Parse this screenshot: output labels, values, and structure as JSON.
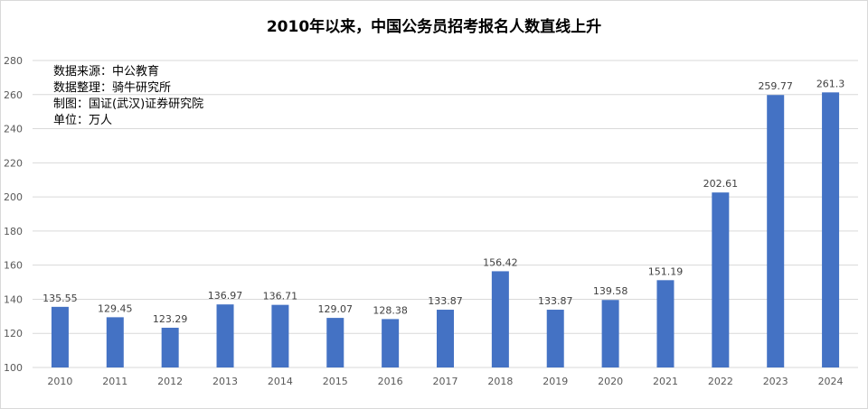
{
  "chart_data": {
    "type": "bar",
    "title": "2010年以来，中国公务员招考报名人数直线上升",
    "notes": [
      "数据来源：中公教育",
      "数据整理：骑牛研究所",
      "制图：国证(武汉)证券研究院",
      "单位：万人"
    ],
    "categories": [
      "2010",
      "2011",
      "2012",
      "2013",
      "2014",
      "2015",
      "2016",
      "2017",
      "2018",
      "2019",
      "2020",
      "2021",
      "2022",
      "2023",
      "2024"
    ],
    "values": [
      135.55,
      129.45,
      123.29,
      136.97,
      136.71,
      129.07,
      128.38,
      133.87,
      156.42,
      133.87,
      139.58,
      151.19,
      202.61,
      259.77,
      261.3
    ],
    "data_labels": [
      "135.55",
      "129.45",
      "123.29",
      "136.97",
      "136.71",
      "129.07",
      "128.38",
      "133.87",
      "156.42",
      "133.87",
      "139.58",
      "151.19",
      "202.61",
      "259.77",
      "261.3"
    ],
    "yticks": [
      "100",
      "120",
      "140",
      "160",
      "180",
      "200",
      "220",
      "240",
      "260",
      "280"
    ],
    "ylim": [
      100,
      280
    ],
    "grid": true,
    "legend": "none",
    "bar_color": "#4472c4",
    "grid_color": "#d9d9d9"
  }
}
